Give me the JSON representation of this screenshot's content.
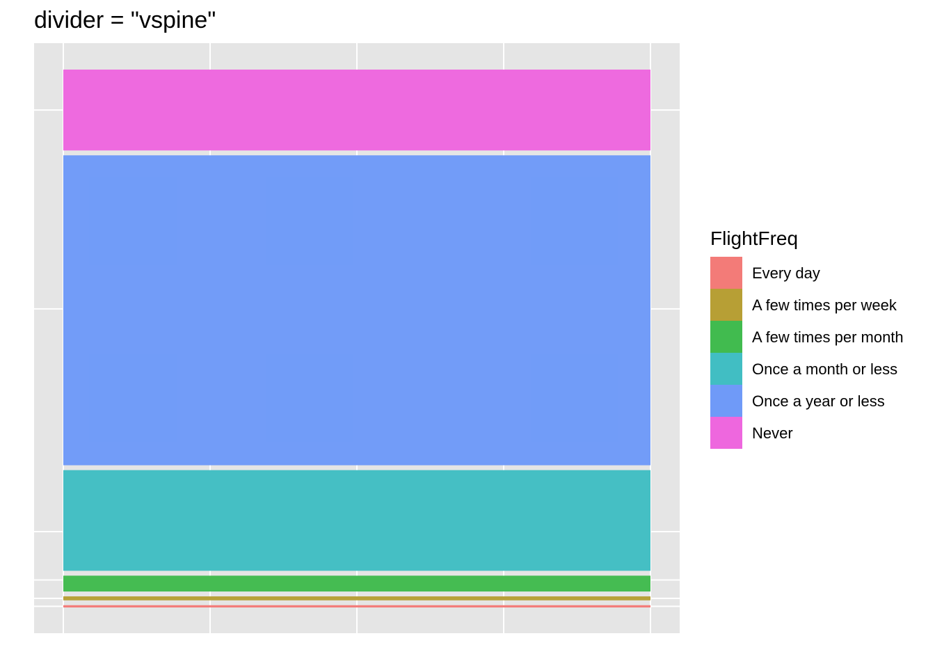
{
  "chart_data": {
    "type": "mosaic",
    "title": "divider = \"vspine\"",
    "legend": {
      "title": "FlightFreq",
      "position": "right"
    },
    "grid": true,
    "series": [
      {
        "name": "Every day",
        "proportion": 0.004,
        "color": "#F37B78"
      },
      {
        "name": "A few times per week",
        "proportion": 0.007,
        "color": "#B79F35"
      },
      {
        "name": "A few times per month",
        "proportion": 0.028,
        "color": "#41BB4F"
      },
      {
        "name": "Once a month or less",
        "proportion": 0.178,
        "color": "#41BEC3"
      },
      {
        "name": "Once a year or less",
        "proportion": 0.548,
        "color": "#6F9AF8"
      },
      {
        "name": "Never",
        "proportion": 0.143,
        "color": "#EE67DE"
      }
    ]
  }
}
